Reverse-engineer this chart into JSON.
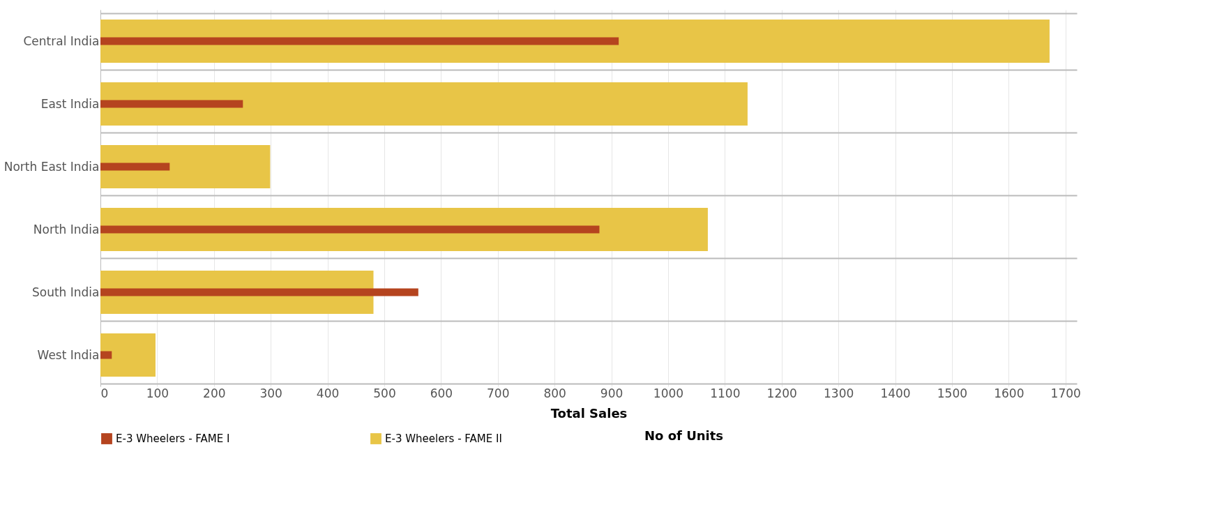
{
  "chart_data": {
    "type": "bar",
    "orientation": "horizontal",
    "xlabel": "Total Sales",
    "annotations": [
      "No of Units"
    ],
    "categories": [
      "Central India",
      "East India",
      "North East India",
      "North India",
      "South India",
      "West India"
    ],
    "series": [
      {
        "name": "E-3 Wheelers - FAME II",
        "color": "#e8c547",
        "values": [
          1672,
          1140,
          299,
          1070,
          481,
          97
        ]
      },
      {
        "name": "E-3 Wheelers - FAME I",
        "color": "#b5441f",
        "values": [
          913,
          251,
          122,
          879,
          560,
          20
        ]
      }
    ],
    "xlim": [
      0,
      1720
    ],
    "xticks": [
      0,
      100,
      200,
      300,
      400,
      500,
      600,
      700,
      800,
      900,
      1000,
      1100,
      1200,
      1300,
      1400,
      1500,
      1600,
      1700
    ],
    "grid": true,
    "legend": "bottom"
  }
}
